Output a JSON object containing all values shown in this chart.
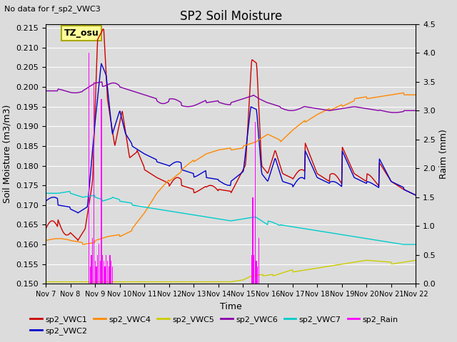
{
  "title": "SP2 Soil Moisture",
  "subtitle": "No data for f_sp2_VWC3",
  "xlabel": "Time",
  "ylabel_left": "Soil Moisture (m3/m3)",
  "ylabel_right": "Raim (mm)",
  "annotation": "TZ_osu",
  "ylim_left": [
    0.15,
    0.216
  ],
  "ylim_right": [
    0.0,
    4.5
  ],
  "background_color": "#dcdcdc",
  "colors": {
    "sp2_VWC1": "#cc0000",
    "sp2_VWC2": "#0000cc",
    "sp2_VWC4": "#ff8800",
    "sp2_VWC5": "#cccc00",
    "sp2_VWC6": "#8800aa",
    "sp2_VWC7": "#00cccc",
    "sp2_Rain": "#ff00ff"
  },
  "x_ticks": [
    "Nov 7",
    "Nov 8",
    "Nov 9",
    "Nov 10",
    "Nov 11",
    "Nov 12",
    "Nov 13",
    "Nov 14",
    "Nov 15",
    "Nov 16",
    "Nov 17",
    "Nov 18",
    "Nov 19",
    "Nov 20",
    "Nov 21",
    "Nov 22"
  ],
  "yticks_left": [
    0.15,
    0.155,
    0.16,
    0.165,
    0.17,
    0.175,
    0.18,
    0.185,
    0.19,
    0.195,
    0.2,
    0.205,
    0.21,
    0.215
  ],
  "yticks_right": [
    0.0,
    0.5,
    1.0,
    1.5,
    2.0,
    2.5,
    3.0,
    3.5,
    4.0,
    4.5
  ],
  "figsize": [
    6.4,
    4.8
  ],
  "dpi": 100
}
